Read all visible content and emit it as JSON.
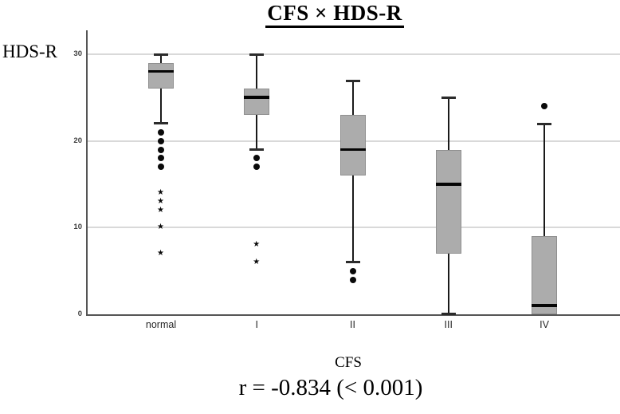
{
  "chart_data": {
    "type": "boxplot",
    "title": "CFS × HDS-R",
    "xlabel": "CFS",
    "ylabel": "HDS-R",
    "annotation": "r = -0.834 (< 0.001)",
    "ylim": [
      0,
      30
    ],
    "y_ticks": [
      0,
      10,
      20,
      30
    ],
    "grid": "horizontal gridlines at 10, 20, 30",
    "legend": "none",
    "categories": [
      "normal",
      "I",
      "II",
      "III",
      "IV"
    ],
    "series": [
      {
        "category": "normal",
        "whisker_low": 22,
        "q1": 26,
        "median": 28,
        "q3": 29,
        "whisker_high": 30,
        "cap_low": true,
        "cap_high": true,
        "outlier_dots": [
          21,
          20,
          19,
          18,
          17
        ],
        "extreme_stars": [
          14,
          13,
          12,
          10,
          7
        ]
      },
      {
        "category": "I",
        "whisker_low": 19,
        "q1": 23,
        "median": 25,
        "q3": 26,
        "whisker_high": 30,
        "cap_low": true,
        "cap_high": true,
        "outlier_dots": [
          18,
          17
        ],
        "extreme_stars": [
          8,
          6
        ]
      },
      {
        "category": "II",
        "whisker_low": 6,
        "q1": 16,
        "median": 19,
        "q3": 23,
        "whisker_high": 27,
        "cap_low": true,
        "cap_high": true,
        "outlier_dots": [
          5,
          4
        ],
        "extreme_stars": []
      },
      {
        "category": "III",
        "whisker_low": 0,
        "q1": 7,
        "median": 15,
        "q3": 19,
        "whisker_high": 25,
        "cap_low": true,
        "cap_high": true,
        "outlier_dots": [],
        "extreme_stars": []
      },
      {
        "category": "IV",
        "whisker_low": 0,
        "q1": 0,
        "median": 1,
        "q3": 9,
        "whisker_high": 22,
        "cap_low": false,
        "cap_high": true,
        "outlier_dots": [
          24
        ],
        "extreme_stars": []
      }
    ],
    "colors": {
      "box_fill": "#acacac",
      "box_border": "#8f8f8f",
      "median": "#050505",
      "whisker": "#1a1a1a",
      "gridline": "#d9d9d9",
      "axis": "#555555"
    },
    "icons": {
      "outlier": "filled-circle-dot",
      "extreme": "star-asterisk",
      "star_glyph": "★"
    }
  }
}
